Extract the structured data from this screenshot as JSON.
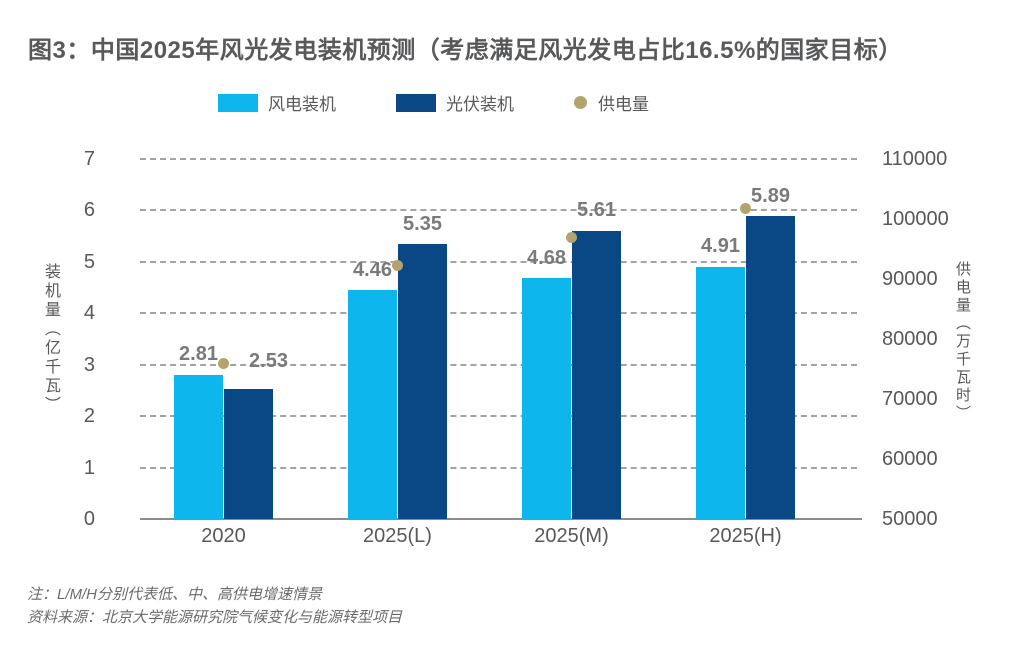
{
  "title": "图3：中国2025年风光发电装机预测（考虑满足风光发电占比16.5%的国家目标）",
  "legend": {
    "position": "top",
    "items": [
      {
        "label": "风电装机",
        "shape": "square",
        "color": "#0db6ec"
      },
      {
        "label": "光伏装机",
        "shape": "square",
        "color": "#0a4785"
      },
      {
        "label": "供电量",
        "shape": "dot",
        "color": "#b3a36c"
      }
    ]
  },
  "notes": {
    "line1": "注：L/M/H分别代表低、中、高供电增速情景",
    "line2": "资料来源：北京大学能源研究院气候变化与能源转型项目"
  },
  "chart_data": {
    "type": "bar",
    "categories": [
      "2020",
      "2025(L)",
      "2025(M)",
      "2025(H)"
    ],
    "series": [
      {
        "name": "风电装机",
        "kind": "bar",
        "axis": "left",
        "color": "#0db6ec",
        "values": [
          2.81,
          4.46,
          4.68,
          4.91
        ],
        "data_labels": true
      },
      {
        "name": "光伏装机",
        "kind": "bar",
        "axis": "left",
        "color": "#0a4785",
        "values": [
          2.53,
          5.35,
          5.61,
          5.89
        ],
        "data_labels": true,
        "label_offsets": [
          [
            20,
            -8
          ],
          [
            0,
            0
          ],
          [
            0,
            0
          ],
          [
            0,
            0
          ]
        ]
      },
      {
        "name": "供电量",
        "kind": "point",
        "axis": "right",
        "color": "#b3a36c",
        "values": [
          76000,
          92300,
          97000,
          101700
        ],
        "values_are_estimated_from_gridlines": true,
        "data_labels": false
      }
    ],
    "left_axis": {
      "label": "装机量（亿千瓦）",
      "min": 0,
      "max": 7,
      "ticks": [
        7,
        6,
        5,
        4,
        3,
        2,
        1,
        0
      ]
    },
    "right_axis": {
      "label": "供电量（万千瓦时）",
      "min": 50000,
      "max": 110000,
      "ticks": [
        110000,
        100000,
        90000,
        80000,
        70000,
        60000,
        50000
      ]
    },
    "grid": "horizontal dashed",
    "legend_position": "top"
  }
}
